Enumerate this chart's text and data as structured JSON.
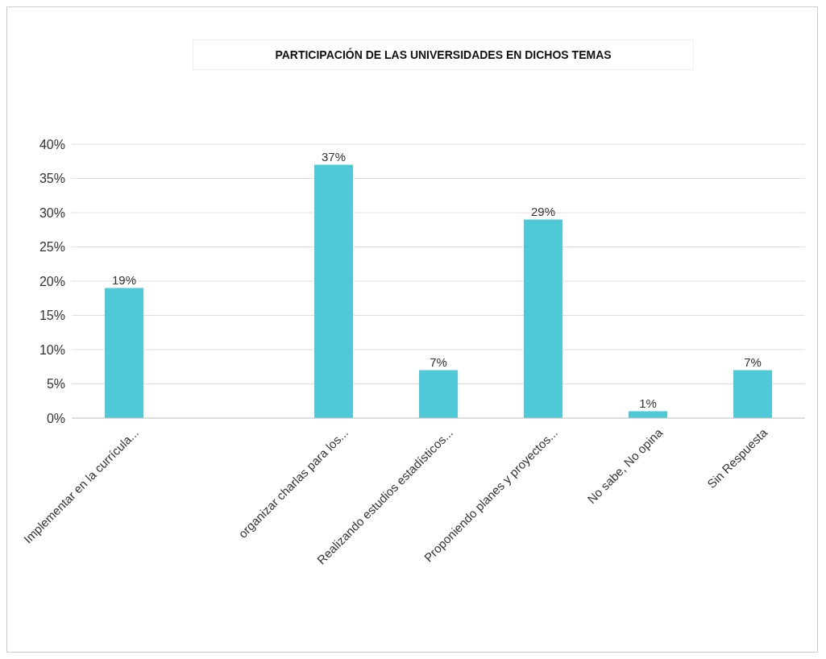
{
  "chart_data": {
    "type": "bar",
    "title": "PARTICIPACIÓN DE LAS UNIVERSIDADES EN DICHOS TEMAS",
    "categories": [
      "Implementar en la currícula...",
      null,
      "organizar charlas para los...",
      "Realizando estudios estadísticos...",
      "Proponiendo planes y proyectos...",
      "No sabe, No opina",
      "Sin Respuesta"
    ],
    "values": [
      19,
      null,
      37,
      7,
      29,
      1,
      7
    ],
    "value_labels": [
      "19%",
      null,
      "37%",
      "7%",
      "29%",
      "1%",
      "7%"
    ],
    "color": "#4fc8d8",
    "ylim": [
      0,
      40
    ],
    "yticks": [
      {
        "value": 0,
        "label": "0%"
      },
      {
        "value": 5,
        "label": "5%"
      },
      {
        "value": 10,
        "label": "10%"
      },
      {
        "value": 15,
        "label": "15%"
      },
      {
        "value": 20,
        "label": "20%"
      },
      {
        "value": 25,
        "label": "25%"
      },
      {
        "value": 30,
        "label": "30%"
      },
      {
        "value": 35,
        "label": "35%"
      },
      {
        "value": 40,
        "label": "40%"
      }
    ],
    "grid": "y",
    "legend": false
  }
}
